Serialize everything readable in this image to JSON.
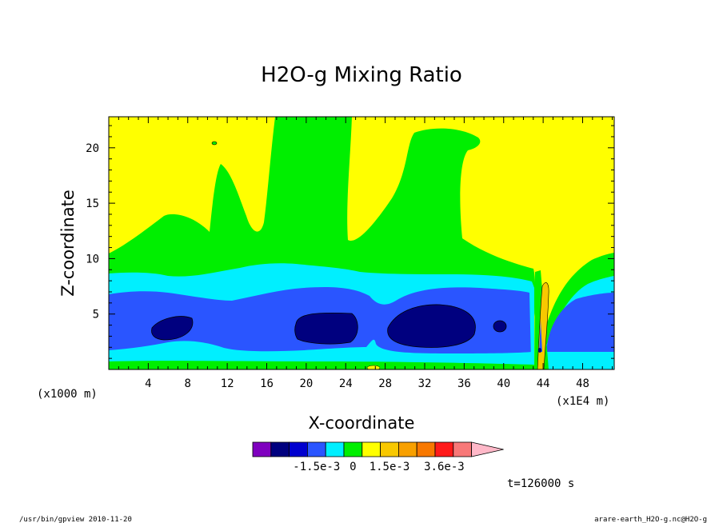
{
  "chart_data": {
    "type": "heatmap",
    "title": "H2O-g Mixing Ratio",
    "xlabel": "X-coordinate",
    "ylabel": "Z-coordinate",
    "x_unit_left": "(x1000 m)",
    "x_unit_right": "(x1E4 m)",
    "x_ticks": [
      4,
      8,
      12,
      16,
      20,
      24,
      28,
      32,
      36,
      40,
      44,
      48
    ],
    "y_ticks": [
      5,
      10,
      15,
      20
    ],
    "xlim": [
      0,
      51.2
    ],
    "ylim": [
      0,
      22.8
    ],
    "time_label": "t=126000 s",
    "colorbar": {
      "colors": [
        "#7f00bf",
        "#00007f",
        "#0000cf",
        "#2a55ff",
        "#00efff",
        "#00ef00",
        "#ffff00",
        "#f8c800",
        "#f8a000",
        "#f87800",
        "#ff1a1a",
        "#f87878"
      ],
      "extend_color": "#ffb8c8",
      "labels": [
        "-1.5e-3",
        "0",
        "1.5e-3",
        "3.6e-3"
      ],
      "label_positions": [
        3.5,
        5.5,
        7.5,
        10.5
      ]
    },
    "level_colors": {
      "navy": "#00007f",
      "blue": "#2a55ff",
      "cyan": "#00efff",
      "green": "#00ef00",
      "yellow": "#ffff00",
      "orange": "#f8c800"
    }
  },
  "footer": {
    "left": "/usr/bin/gpview  2010-11-20",
    "right": "arare-earth_H2O-g.nc@H2O-g"
  }
}
